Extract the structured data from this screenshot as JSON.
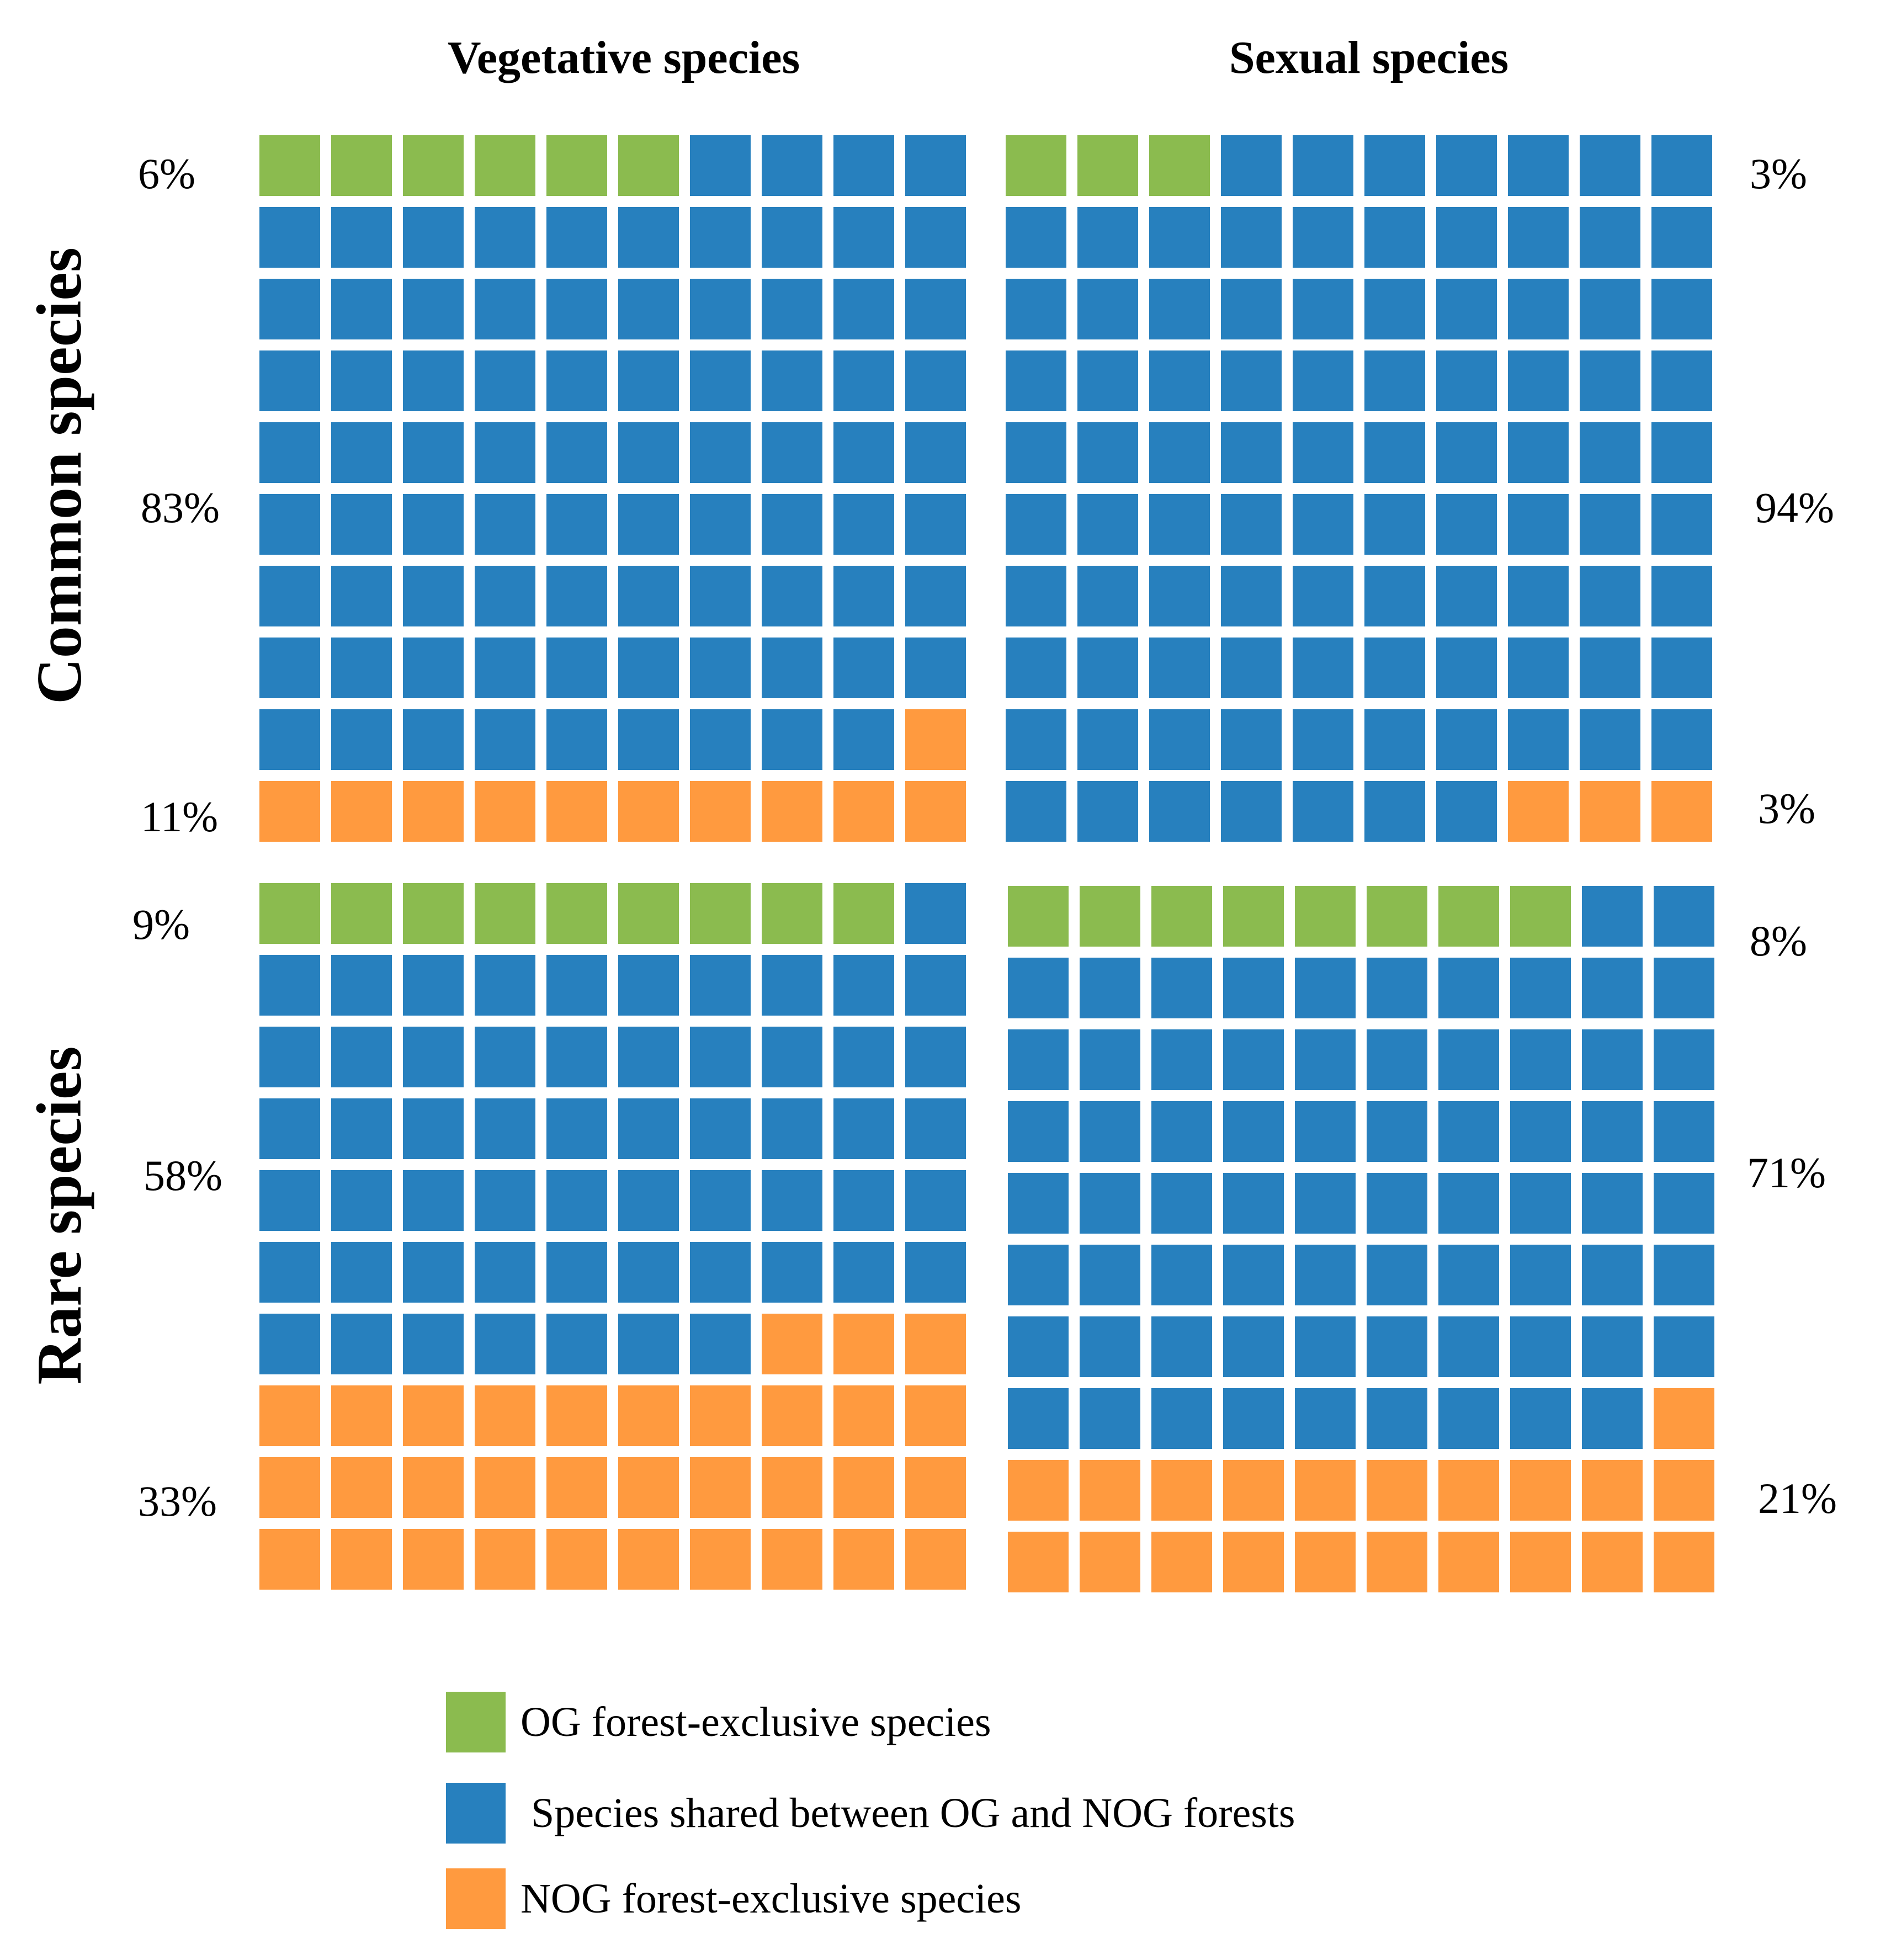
{
  "chart_data": {
    "type": "waffle",
    "columns": [
      "Vegetative species",
      "Sexual species"
    ],
    "rows": [
      "Common species",
      "Rare species"
    ],
    "categories": [
      "OG forest-exclusive species",
      "Species shared between OG and NOG forests",
      "NOG forest-exclusive species"
    ],
    "colors": {
      "og": "#8BBB4F",
      "shared": "#2780BE",
      "nog": "#FF9A3F"
    },
    "panels": [
      {
        "id": "common-vegetative",
        "row": "Common species",
        "column": "Vegetative species",
        "og_cells": 6,
        "shared_cells": 83,
        "nog_cells": 11,
        "og_label": "6%",
        "shared_label": "83%",
        "nog_label": "11%"
      },
      {
        "id": "common-sexual",
        "row": "Common species",
        "column": "Sexual species",
        "og_cells": 3,
        "shared_cells": 94,
        "nog_cells": 3,
        "og_label": "3%",
        "shared_label": "94%",
        "nog_label": "3%"
      },
      {
        "id": "rare-vegetative",
        "row": "Rare species",
        "column": "Vegetative species",
        "og_cells": 9,
        "shared_cells": 58,
        "nog_cells": 33,
        "og_label": "9%",
        "shared_label": "58%",
        "nog_label": "33%"
      },
      {
        "id": "rare-sexual",
        "row": "Rare species",
        "column": "Sexual species",
        "og_cells": 8,
        "shared_cells": 71,
        "nog_cells": 21,
        "og_label": "8%",
        "shared_label": "71%",
        "nog_label": "21%"
      }
    ],
    "grid": {
      "rows": 10,
      "cols": 10
    },
    "legend": [
      {
        "key": "og",
        "label": "OG forest-exclusive species"
      },
      {
        "key": "shared",
        "label": " Species shared between OG and NOG forests"
      },
      {
        "key": "nog",
        "label": "NOG forest-exclusive species"
      }
    ]
  }
}
